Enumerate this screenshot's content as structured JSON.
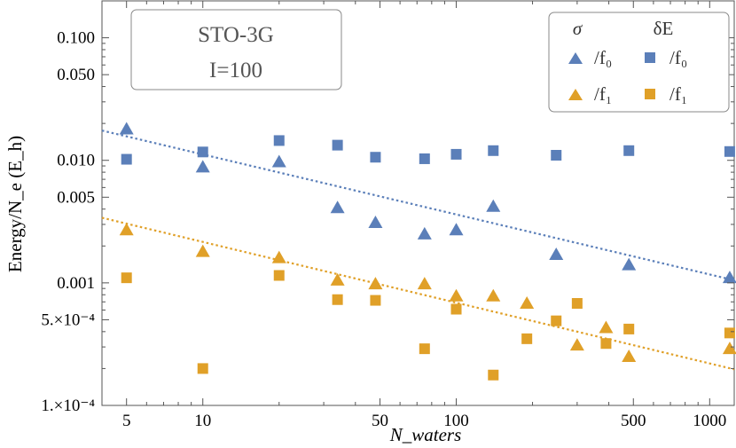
{
  "chart_data": {
    "type": "scatter",
    "scale": {
      "x": "log",
      "y": "log"
    },
    "xlim": [
      4,
      1250
    ],
    "ylim": [
      0.0001,
      0.2
    ],
    "xlabel": "N_waters",
    "ylabel": "Energy/N_e (E_h)",
    "x_ticks": [
      {
        "value": 5,
        "label": "5"
      },
      {
        "value": 10,
        "label": "10"
      },
      {
        "value": 50,
        "label": "50"
      },
      {
        "value": 100,
        "label": "100"
      },
      {
        "value": 500,
        "label": "500"
      },
      {
        "value": 1000,
        "label": "1000"
      }
    ],
    "y_ticks": [
      {
        "value": 0.1,
        "label": "0.100"
      },
      {
        "value": 0.05,
        "label": "0.050"
      },
      {
        "value": 0.01,
        "label": "0.010"
      },
      {
        "value": 0.005,
        "label": "0.005"
      },
      {
        "value": 0.001,
        "label": "0.001"
      },
      {
        "value": 0.0005,
        "label": "5.×10⁻⁴"
      },
      {
        "value": 0.0001,
        "label": "1.×10⁻⁴"
      }
    ],
    "annotation": [
      "STO-3G",
      "I=100"
    ],
    "legend": {
      "placement": "top-right",
      "column_headers": [
        "σ",
        "δE"
      ],
      "entries": [
        "/f₀",
        "/f₀",
        "/f₁",
        "/f₁"
      ]
    },
    "colors": {
      "blue": "#5b7fb9",
      "orange": "#e0a028"
    },
    "series": [
      {
        "marker": "triangle",
        "color": "#5b7fb9",
        "x": [
          5,
          10,
          20,
          34,
          48,
          75,
          100,
          140,
          248,
          480,
          1200
        ],
        "y": [
          0.018,
          0.0088,
          0.0097,
          0.0041,
          0.0031,
          0.0025,
          0.0027,
          0.0042,
          0.0017,
          0.0014,
          0.0011
        ]
      },
      {
        "marker": "square",
        "color": "#5b7fb9",
        "x": [
          5,
          10,
          20,
          34,
          48,
          75,
          100,
          140,
          248,
          480,
          1200
        ],
        "y": [
          0.0102,
          0.0117,
          0.0145,
          0.0133,
          0.0106,
          0.0103,
          0.0112,
          0.012,
          0.011,
          0.012,
          0.0118
        ]
      },
      {
        "marker": "triangle",
        "color": "#e0a028",
        "x": [
          5,
          10,
          20,
          34,
          48,
          75,
          100,
          140,
          190,
          300,
          390,
          480,
          1200
        ],
        "y": [
          0.0027,
          0.0018,
          0.0016,
          0.00105,
          0.00098,
          0.00098,
          0.00078,
          0.00078,
          0.00068,
          0.00031,
          0.00043,
          0.00025,
          0.00029
        ]
      },
      {
        "marker": "square",
        "color": "#e0a028",
        "x": [
          5,
          10,
          20,
          34,
          48,
          75,
          100,
          140,
          190,
          248,
          300,
          390,
          480,
          1200
        ],
        "y": [
          0.0011,
          0.0002,
          0.00115,
          0.00073,
          0.00072,
          0.00029,
          0.00061,
          0.000177,
          0.00035,
          0.00049,
          0.00068,
          0.00032,
          0.00042,
          0.00039
        ]
      }
    ],
    "fit_lines": [
      {
        "color": "#5b7fb9",
        "style": "dotted",
        "x": [
          4,
          1250
        ],
        "y": [
          0.0175,
          0.00105
        ]
      },
      {
        "color": "#e0a028",
        "style": "dotted",
        "x": [
          4,
          1250
        ],
        "y": [
          0.0034,
          0.000197
        ]
      }
    ]
  }
}
